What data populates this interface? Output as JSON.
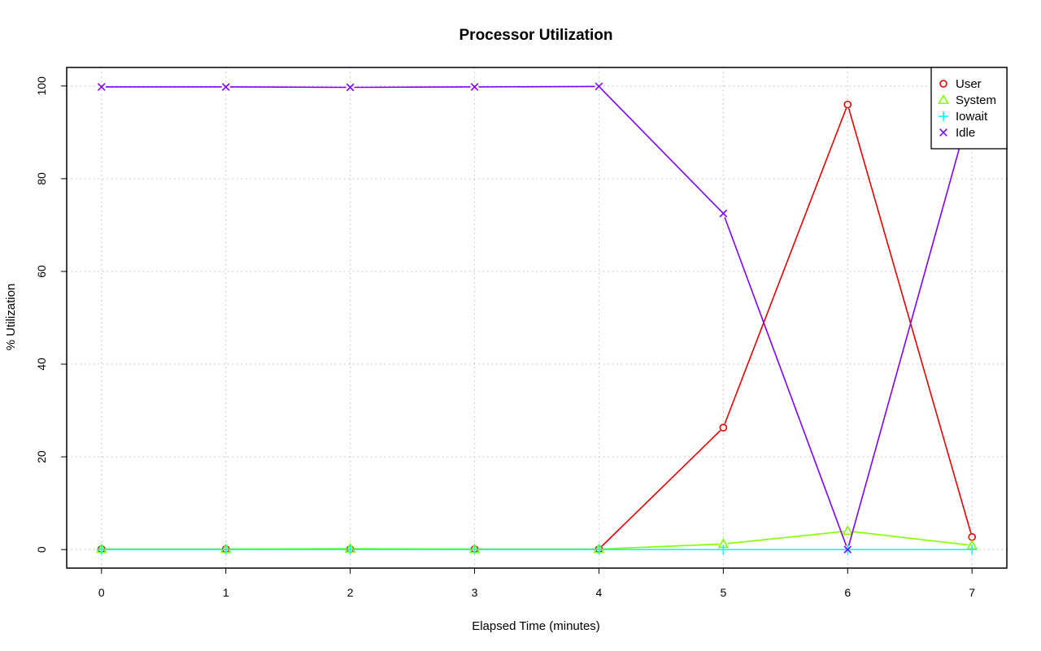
{
  "chart_data": {
    "type": "line",
    "title": "Processor Utilization",
    "xlabel": "Elapsed Time (minutes)",
    "ylabel": "% Utilization",
    "x": [
      0,
      1,
      2,
      3,
      4,
      5,
      6,
      7
    ],
    "xlim": [
      -0.28,
      7.28
    ],
    "ylim": [
      -4,
      104
    ],
    "xticks": [
      0,
      1,
      2,
      3,
      4,
      5,
      6,
      7
    ],
    "yticks": [
      0,
      20,
      40,
      60,
      80,
      100
    ],
    "grid": true,
    "legend_position": "top-right",
    "series": [
      {
        "name": "User",
        "color": "#e60000",
        "marker": "circle",
        "values": [
          0.1,
          0.1,
          0.1,
          0.1,
          0.1,
          26.3,
          96.0,
          2.7
        ]
      },
      {
        "name": "System",
        "color": "#80ff00",
        "marker": "triangle",
        "values": [
          0.1,
          0.1,
          0.2,
          0.1,
          0.1,
          1.2,
          4.0,
          0.9
        ]
      },
      {
        "name": "Iowait",
        "color": "#00ffff",
        "marker": "plus",
        "values": [
          0.0,
          0.0,
          0.0,
          0.0,
          0.0,
          0.0,
          0.0,
          0.0
        ]
      },
      {
        "name": "Idle",
        "color": "#8000ff",
        "marker": "cross",
        "values": [
          99.8,
          99.8,
          99.7,
          99.8,
          99.9,
          72.5,
          0.0,
          96.4
        ]
      }
    ]
  }
}
